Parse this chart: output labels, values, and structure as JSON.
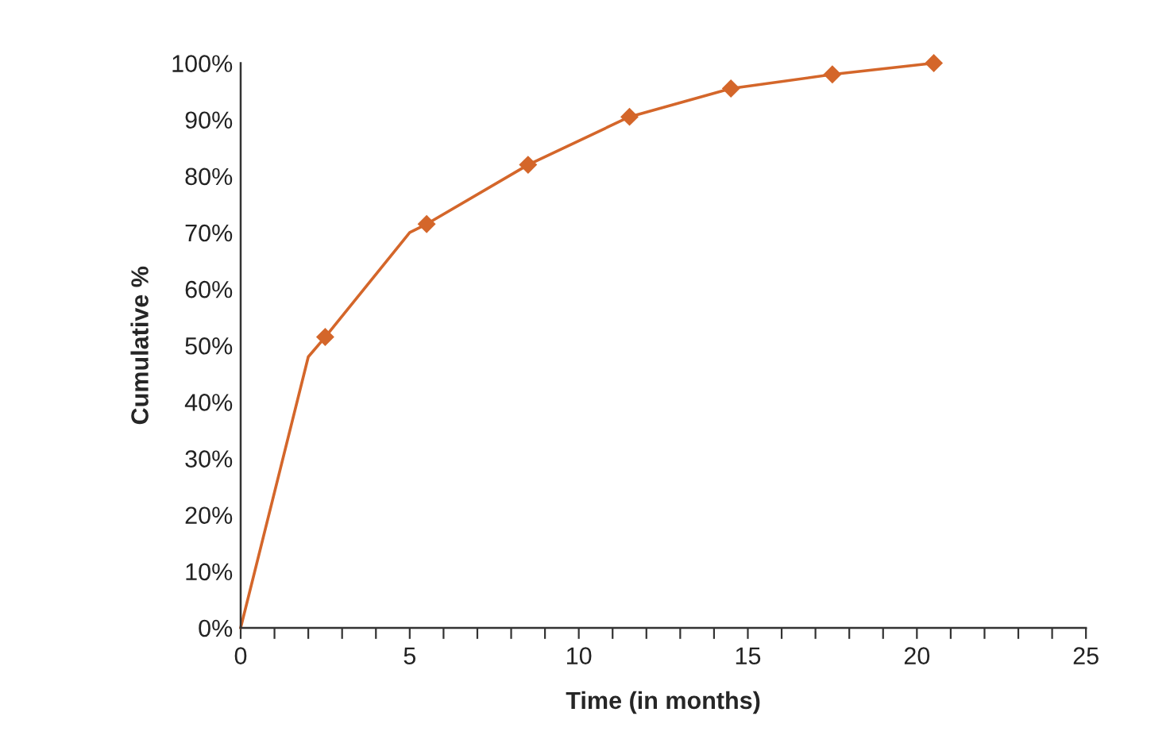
{
  "chart_data": {
    "type": "line",
    "xlabel": "Time (in months)",
    "ylabel": "Cumulative %",
    "series": [
      {
        "color": "#d4662a",
        "marker": "none",
        "x": [
          0,
          2,
          2.5,
          5,
          5.5,
          8.5,
          11.5,
          14.5,
          17.5,
          20.5
        ],
        "values": [
          0,
          48,
          51.5,
          70,
          71.5,
          82,
          90.5,
          95.5,
          98,
          100
        ]
      },
      {
        "type": "scatter",
        "color": "#d4662a",
        "marker": "diamond",
        "x": [
          2.5,
          5.5,
          8.5,
          11.5,
          14.5,
          17.5,
          20.5
        ],
        "values": [
          51.5,
          71.5,
          82,
          90.5,
          95.5,
          98,
          100
        ]
      }
    ],
    "xlim": [
      0,
      25
    ],
    "xticks": [
      0,
      {
        "value": 1,
        "label": null
      },
      {
        "value": 2,
        "label": null
      },
      {
        "value": 3,
        "label": null
      },
      {
        "value": 4,
        "label": null
      },
      5,
      {
        "value": 6,
        "label": null
      },
      {
        "value": 7,
        "label": null
      },
      {
        "value": 8,
        "label": null
      },
      {
        "value": 9,
        "label": null
      },
      10,
      {
        "value": 11,
        "label": null
      },
      {
        "value": 12,
        "label": null
      },
      {
        "value": 13,
        "label": null
      },
      {
        "value": 14,
        "label": null
      },
      15,
      {
        "value": 16,
        "label": null
      },
      {
        "value": 17,
        "label": null
      },
      {
        "value": 18,
        "label": null
      },
      {
        "value": 19,
        "label": null
      },
      20,
      {
        "value": 21,
        "label": null
      },
      {
        "value": 22,
        "label": null
      },
      {
        "value": 23,
        "label": null
      },
      {
        "value": 24,
        "label": null
      },
      25
    ],
    "ylim": [
      0,
      100
    ],
    "yticks": [
      {
        "value": 0,
        "label": "0%"
      },
      {
        "value": 10,
        "label": "10%"
      },
      {
        "value": 20,
        "label": "20%"
      },
      {
        "value": 30,
        "label": "30%"
      },
      {
        "value": 40,
        "label": "40%"
      },
      {
        "value": 50,
        "label": "50%"
      },
      {
        "value": 60,
        "label": "60%"
      },
      {
        "value": 70,
        "label": "70%"
      },
      {
        "value": 80,
        "label": "80%"
      },
      {
        "value": 90,
        "label": "90%"
      },
      {
        "value": 100,
        "label": "100%"
      }
    ],
    "grid": false,
    "legend": false
  }
}
